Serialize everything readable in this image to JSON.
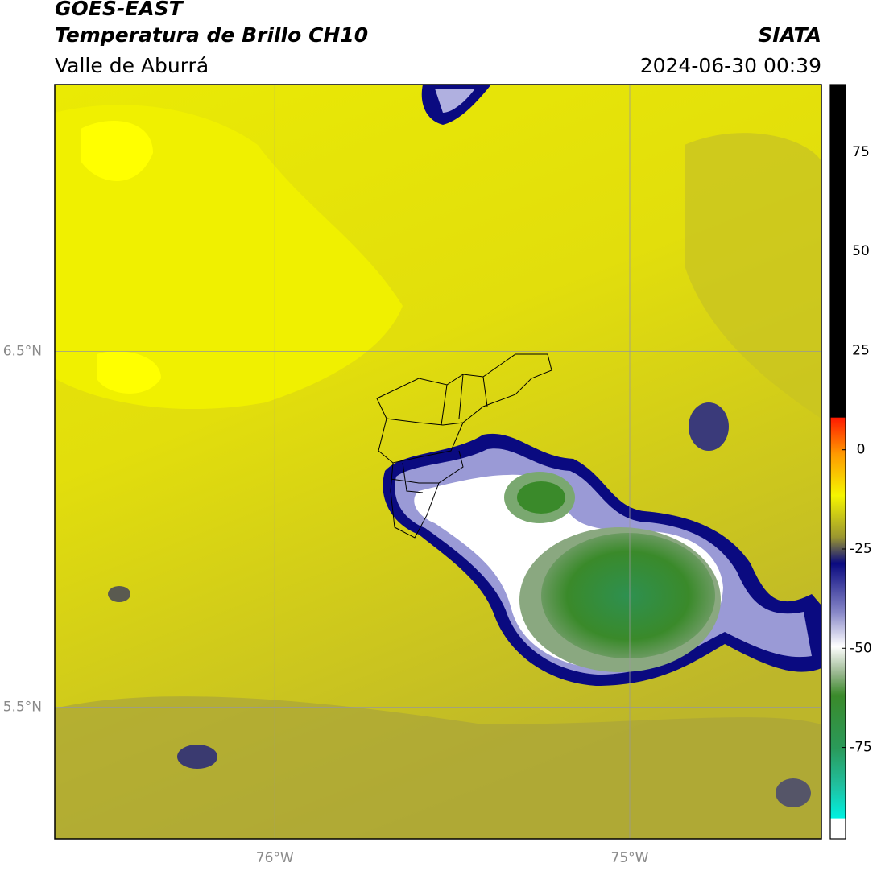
{
  "header": {
    "satellite": "GOES-EAST",
    "product": "Temperatura de Brillo CH10",
    "region": "Valle de Aburrá",
    "institution": "SIATA",
    "datetime": "2024-06-30 00:39"
  },
  "map": {
    "type": "map",
    "xlim": [
      -76.62,
      -74.46
    ],
    "ylim": [
      5.13,
      7.25
    ],
    "xticks": [
      {
        "value": -76,
        "label": "76°W"
      },
      {
        "value": -75,
        "label": "75°W"
      }
    ],
    "yticks": [
      {
        "value": 6.5,
        "label": "6.5°N"
      },
      {
        "value": 5.5,
        "label": "5.5°N"
      }
    ],
    "grid": true
  },
  "colorbar": {
    "lim": [
      -98,
      92
    ],
    "ticks": [
      75,
      50,
      25,
      0,
      -25,
      -50,
      -75
    ]
  }
}
